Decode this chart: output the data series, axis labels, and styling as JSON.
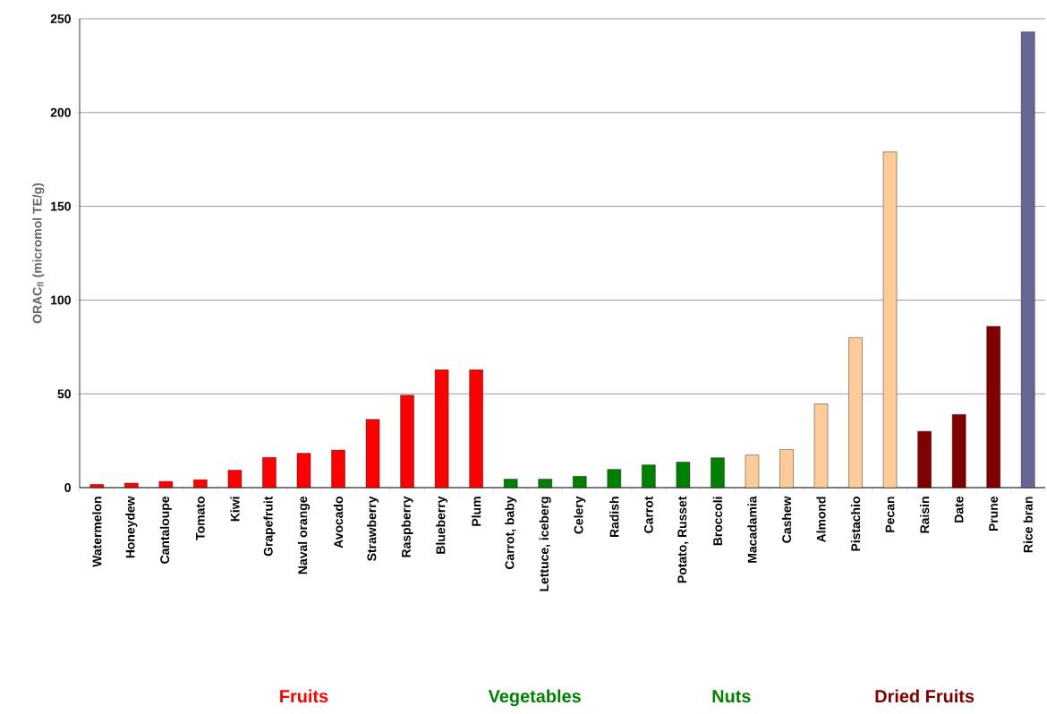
{
  "chart_data": {
    "type": "bar",
    "ylabel": "ORAC$_{fl}$ (micromol TE/g)",
    "categories": [
      "Watermelon",
      "Honeydew",
      "Cantaloupe",
      "Tomato",
      "Kiwi",
      "Grapefruit",
      "Naval orange",
      "Avocado",
      "Strawberry",
      "Raspberry",
      "Blueberry",
      "Plum",
      "Carrot, baby",
      "Lettuce, iceberg",
      "Celery",
      "Radish",
      "Carrot",
      "Potato, Russet",
      "Broccoli",
      "Macadamia",
      "Cashew",
      "Almond",
      "Pistachio",
      "Pecan",
      "Raisin",
      "Date",
      "Prune",
      "Rice bran"
    ],
    "values": [
      1.7,
      2.4,
      3.3,
      4.2,
      9.3,
      16.1,
      18.3,
      20,
      36.4,
      49.3,
      62.8,
      62.8,
      4.5,
      4.5,
      6,
      9.7,
      12.1,
      13.6,
      15.9,
      17.4,
      20.3,
      44.6,
      80,
      179,
      30,
      39,
      86,
      243
    ],
    "colors": [
      "#ff0000",
      "#ff0000",
      "#ff0000",
      "#ff0000",
      "#ff0000",
      "#ff0000",
      "#ff0000",
      "#ff0000",
      "#ff0000",
      "#ff0000",
      "#ff0000",
      "#ff0000",
      "#008000",
      "#008000",
      "#008000",
      "#008000",
      "#008000",
      "#008000",
      "#008000",
      "#ffcc99",
      "#ffcc99",
      "#ffcc99",
      "#ffcc99",
      "#ffcc99",
      "#800000",
      "#800000",
      "#800000",
      "#666699"
    ],
    "ylim": [
      0,
      250
    ],
    "yticks": [
      0,
      50,
      100,
      150,
      200,
      250
    ],
    "grid": "y",
    "annotations": [
      "Fruits",
      "Vegetables",
      "Nuts",
      "Dried Fruits"
    ]
  }
}
